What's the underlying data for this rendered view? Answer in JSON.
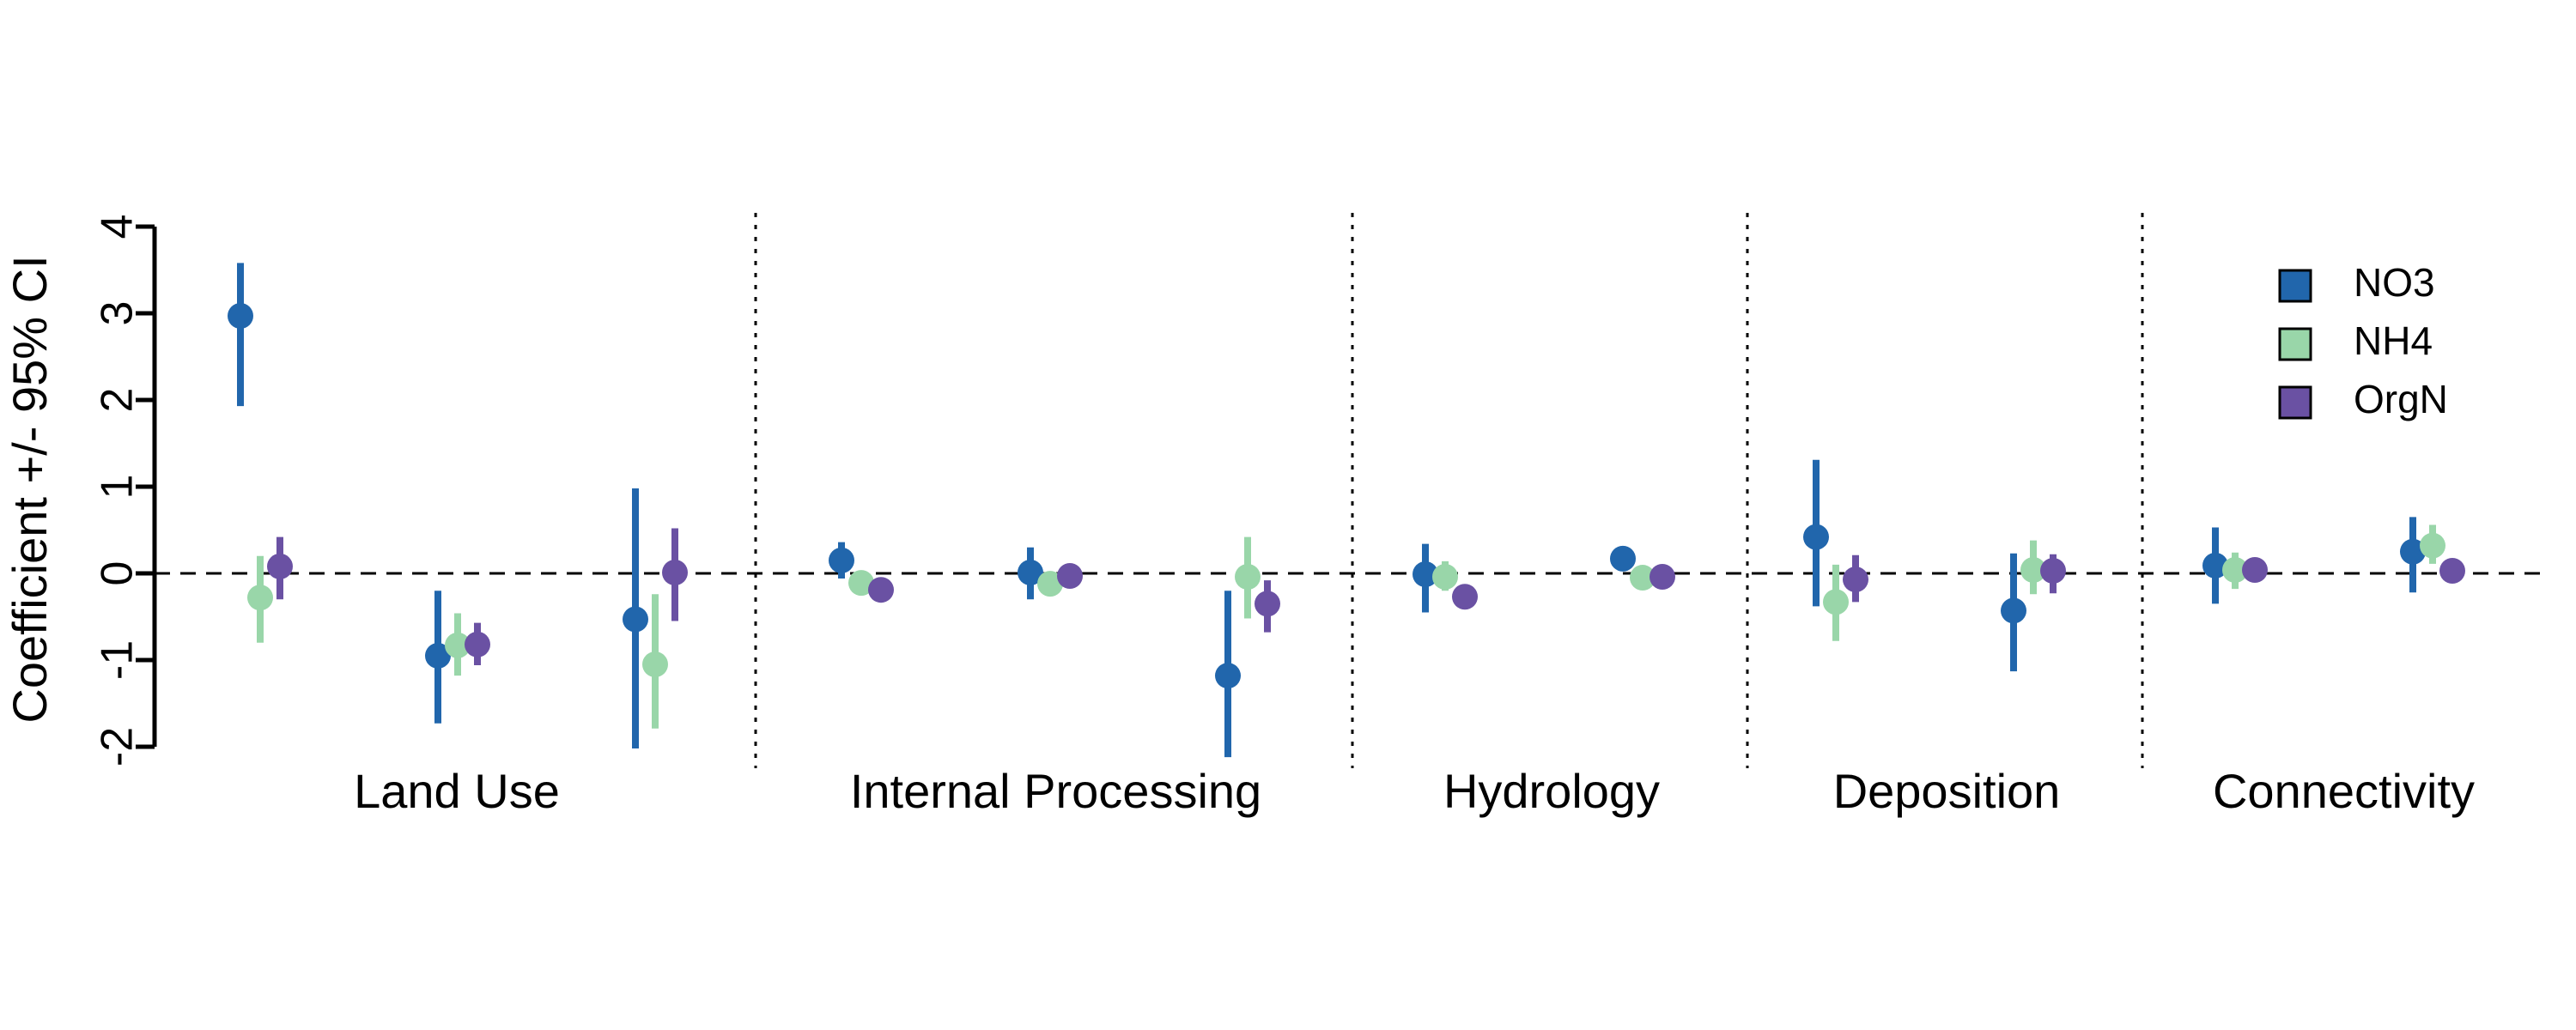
{
  "chart_data": {
    "type": "scatter",
    "subtype": "coefficient-plot-with-error-bars",
    "title": "",
    "xlabel": "",
    "ylabel": "Coefficient +/- 95% CI",
    "ylim": [
      -2,
      4
    ],
    "yticks": [
      -2,
      -1,
      0,
      1,
      2,
      3,
      4
    ],
    "grid": false,
    "reference_line": 0,
    "legend_position": "top-right",
    "groups": [
      {
        "label": "Land Use",
        "slots": 3
      },
      {
        "label": "Internal Processing",
        "slots": 3
      },
      {
        "label": "Hydrology",
        "slots": 2
      },
      {
        "label": "Deposition",
        "slots": 2
      },
      {
        "label": "Connectivity",
        "slots": 2
      }
    ],
    "series": [
      {
        "name": "NO3",
        "color": "#2166ac",
        "estimates": [
          2.97,
          -0.95,
          -0.53,
          0.15,
          0.01,
          -1.18,
          -0.01,
          0.17,
          0.42,
          -0.43,
          0.09,
          0.25
        ],
        "lower": [
          1.93,
          -1.73,
          -2.02,
          -0.06,
          -0.3,
          -2.12,
          -0.45,
          0.17,
          -0.38,
          -1.13,
          -0.35,
          -0.22
        ],
        "upper": [
          3.58,
          -0.2,
          0.98,
          0.36,
          0.3,
          -0.2,
          0.34,
          0.17,
          1.31,
          0.23,
          0.53,
          0.65
        ]
      },
      {
        "name": "NH4",
        "color": "#99d6a9",
        "estimates": [
          -0.28,
          -0.83,
          -1.05,
          -0.11,
          -0.12,
          -0.04,
          -0.04,
          -0.05,
          -0.33,
          0.04,
          0.04,
          0.32
        ],
        "lower": [
          -0.8,
          -1.18,
          -1.79,
          -0.11,
          -0.26,
          -0.52,
          -0.2,
          -0.05,
          -0.78,
          -0.24,
          -0.18,
          0.11
        ],
        "upper": [
          0.2,
          -0.46,
          -0.24,
          -0.11,
          0.02,
          0.42,
          0.14,
          -0.05,
          0.1,
          0.38,
          0.24,
          0.56
        ]
      },
      {
        "name": "OrgN",
        "color": "#6a51a3",
        "estimates": [
          0.08,
          -0.82,
          0.01,
          -0.19,
          -0.03,
          -0.35,
          -0.27,
          -0.04,
          -0.07,
          0.03,
          0.04,
          0.03
        ],
        "lower": [
          -0.3,
          -1.06,
          -0.55,
          -0.19,
          -0.03,
          -0.68,
          -0.27,
          -0.04,
          -0.33,
          -0.23,
          0.04,
          -0.06
        ],
        "upper": [
          0.42,
          -0.57,
          0.52,
          -0.19,
          -0.03,
          -0.08,
          -0.27,
          -0.04,
          0.21,
          0.22,
          0.04,
          0.11
        ]
      }
    ]
  }
}
